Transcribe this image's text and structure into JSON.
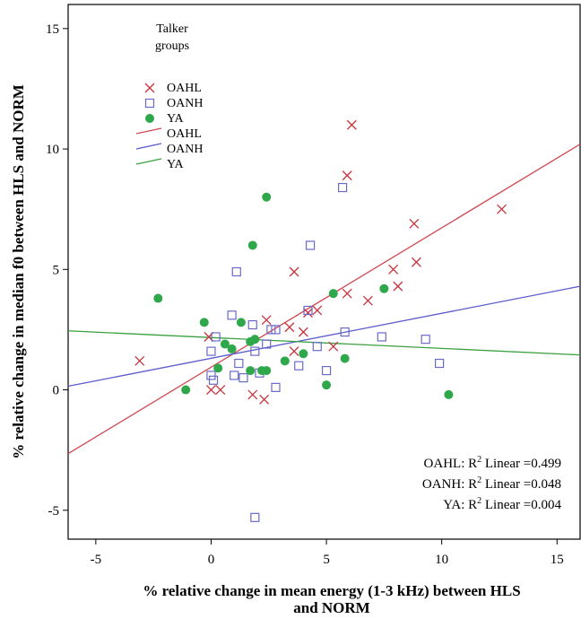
{
  "chart_data": {
    "type": "scatter",
    "title": "",
    "xlabel": [
      "% relative change in mean energy (1-3 kHz) between HLS",
      "and NORM"
    ],
    "ylabel": "% relative change in median f0 between HLS and NORM",
    "xlim": [
      -6.2,
      16
    ],
    "ylim": [
      -6.2,
      16
    ],
    "xticks": [
      -5,
      0,
      5,
      10,
      15
    ],
    "yticks": [
      -5,
      0,
      5,
      10,
      15
    ],
    "grid": false,
    "legend": {
      "title": [
        "Talker",
        "groups"
      ],
      "placement": "top-left",
      "entries": [
        {
          "label": "OAHL",
          "kind": "marker",
          "marker": "x",
          "color": "#c8323c"
        },
        {
          "label": "OANH",
          "kind": "marker",
          "marker": "square",
          "color": "#6a6ac8"
        },
        {
          "label": "YA",
          "kind": "marker",
          "marker": "circle",
          "color": "#2ea84a"
        },
        {
          "label": "OAHL",
          "kind": "line",
          "color": "#d04850"
        },
        {
          "label": "OANH",
          "kind": "line",
          "color": "#5a5acc"
        },
        {
          "label": "YA",
          "kind": "line",
          "color": "#3aa040"
        }
      ]
    },
    "series": [
      {
        "name": "OAHL",
        "marker": "x",
        "color": "#c8323c",
        "points": [
          [
            -3.1,
            1.2
          ],
          [
            -0.1,
            2.2
          ],
          [
            0,
            0
          ],
          [
            0.4,
            0
          ],
          [
            1.8,
            -0.2
          ],
          [
            2.3,
            -0.4
          ],
          [
            2.4,
            2.9
          ],
          [
            3.4,
            2.6
          ],
          [
            3.6,
            1.6
          ],
          [
            3.6,
            4.9
          ],
          [
            4,
            2.4
          ],
          [
            4.2,
            3.2
          ],
          [
            4.6,
            3.3
          ],
          [
            5.3,
            1.8
          ],
          [
            5.9,
            4
          ],
          [
            5.9,
            8.9
          ],
          [
            6.1,
            11
          ],
          [
            6.8,
            3.7
          ],
          [
            7.9,
            5
          ],
          [
            8.1,
            4.3
          ],
          [
            8.8,
            6.9
          ],
          [
            8.9,
            5.3
          ],
          [
            12.6,
            7.5
          ]
        ]
      },
      {
        "name": "OANH",
        "marker": "square",
        "color": "#6a6ac8",
        "points": [
          [
            0,
            0.6
          ],
          [
            0,
            1.6
          ],
          [
            0.1,
            0.4
          ],
          [
            0.2,
            2.2
          ],
          [
            0.9,
            3.1
          ],
          [
            1,
            0.6
          ],
          [
            1.1,
            4.9
          ],
          [
            1.2,
            1.1
          ],
          [
            1.4,
            0.5
          ],
          [
            1.8,
            2.7
          ],
          [
            1.9,
            1.6
          ],
          [
            1.9,
            -5.3
          ],
          [
            2.1,
            0.7
          ],
          [
            2.4,
            1.9
          ],
          [
            2.6,
            2.5
          ],
          [
            2.8,
            2.5
          ],
          [
            2.8,
            0.1
          ],
          [
            3.8,
            1
          ],
          [
            4.2,
            3.3
          ],
          [
            4.3,
            6
          ],
          [
            4.6,
            1.8
          ],
          [
            5,
            0.8
          ],
          [
            5.7,
            8.4
          ],
          [
            5.8,
            2.4
          ],
          [
            7.4,
            2.2
          ],
          [
            9.3,
            2.1
          ],
          [
            9.9,
            1.1
          ]
        ]
      },
      {
        "name": "YA",
        "marker": "circle",
        "color": "#2ea84a",
        "points": [
          [
            -2.3,
            3.8
          ],
          [
            -1.1,
            0
          ],
          [
            -0.3,
            2.8
          ],
          [
            0.3,
            0.9
          ],
          [
            0.6,
            1.9
          ],
          [
            0.9,
            1.7
          ],
          [
            1.3,
            2.8
          ],
          [
            1.7,
            0.8
          ],
          [
            1.7,
            2
          ],
          [
            1.8,
            6
          ],
          [
            1.9,
            2.1
          ],
          [
            2.2,
            0.8
          ],
          [
            2.4,
            0.8
          ],
          [
            2.4,
            8
          ],
          [
            3.2,
            1.2
          ],
          [
            4.0,
            1.5
          ],
          [
            5.0,
            0.2
          ],
          [
            5.3,
            4
          ],
          [
            5.8,
            1.3
          ],
          [
            7.5,
            4.2
          ],
          [
            10.3,
            -0.2
          ]
        ]
      }
    ],
    "fit_lines": [
      {
        "name": "OAHL",
        "color": "#d04850",
        "points": [
          [
            -6.2,
            -2.65
          ],
          [
            16,
            10.2
          ]
        ]
      },
      {
        "name": "OANH",
        "color": "#5a5acc",
        "points": [
          [
            -6.2,
            0.15
          ],
          [
            16,
            4.3
          ]
        ]
      },
      {
        "name": "YA",
        "color": "#3aa040",
        "points": [
          [
            -6.2,
            2.45
          ],
          [
            16,
            1.45
          ]
        ]
      }
    ],
    "annotations": [
      "OAHL: R² Linear =0.499",
      "OANH: R² Linear =0.048",
      "YA: R² Linear =0.004"
    ]
  }
}
